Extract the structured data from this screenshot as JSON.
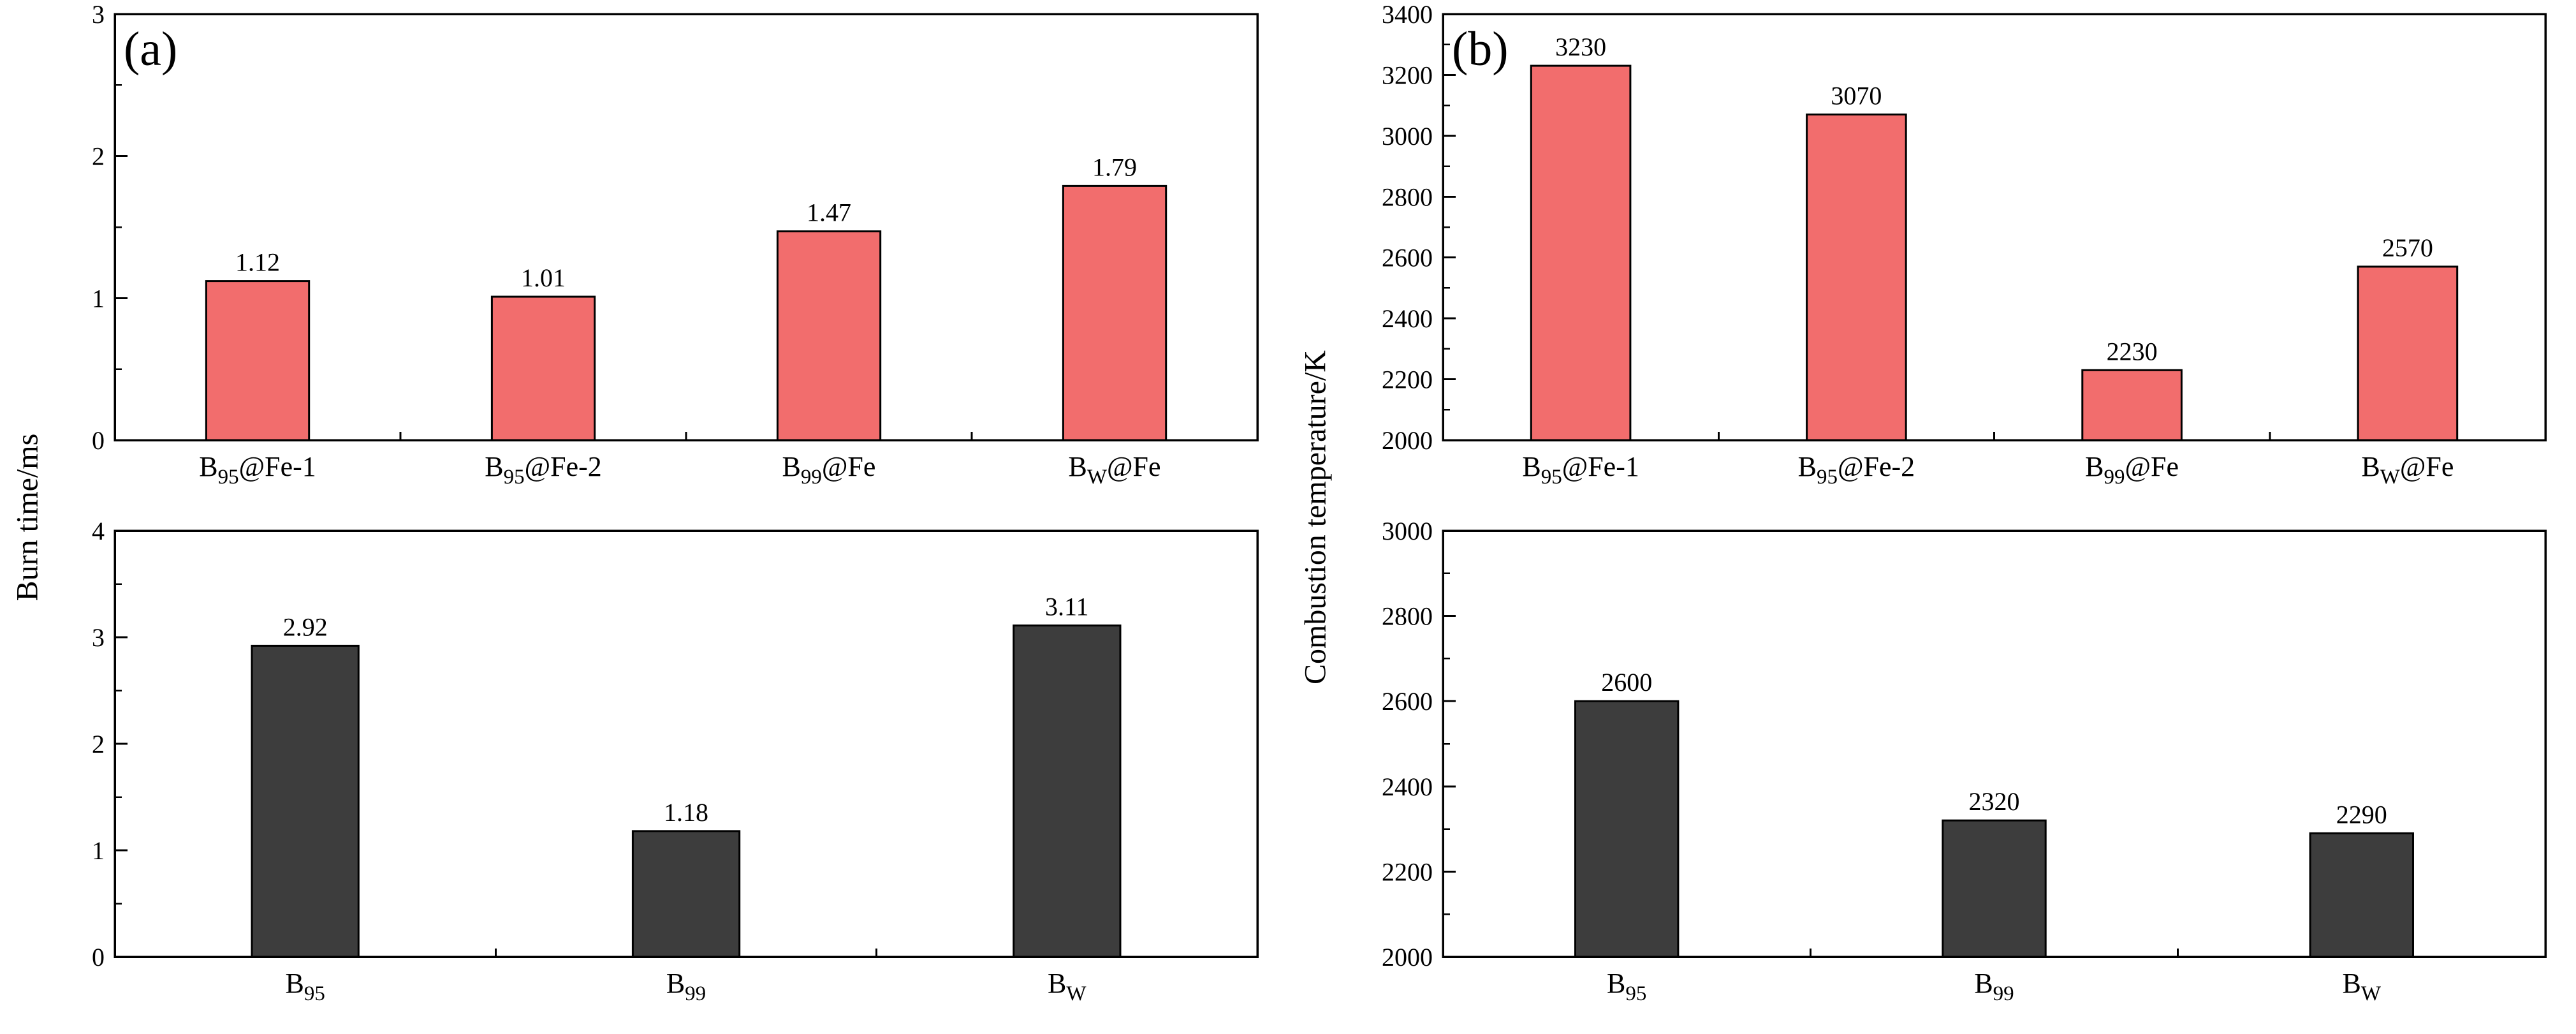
{
  "figure": {
    "background": "#ffffff",
    "axis_color": "#000000",
    "panels": [
      {
        "letter": "(a)",
        "ylabel": "Burn time/ms"
      },
      {
        "letter": "(b)",
        "ylabel": "Combustion temperature/K"
      }
    ]
  },
  "chart_data": [
    {
      "id": "burn-time-fe-coated",
      "panel": "a",
      "position": "top",
      "type": "bar",
      "corner_label": "(a)",
      "categories": [
        "B_{95}@Fe-1",
        "B_{95}@Fe-2",
        "B_{99}@Fe",
        "B_{W}@Fe"
      ],
      "values": [
        1.12,
        1.01,
        1.47,
        1.79
      ],
      "value_labels": [
        "1.12",
        "1.01",
        "1.47",
        "1.79"
      ],
      "ylim": [
        0,
        3
      ],
      "ytick_step": 1,
      "yminor_step": 0.5,
      "ylabel_shared": "Burn time/ms",
      "bar_color": "#F26D6D",
      "bar_frac": 0.36,
      "grid": false,
      "legend": "none"
    },
    {
      "id": "burn-time-raw",
      "panel": "a",
      "position": "bottom",
      "type": "bar",
      "corner_label": "",
      "categories": [
        "B_{95}",
        "B_{99}",
        "B_{W}"
      ],
      "values": [
        2.92,
        1.18,
        3.11
      ],
      "value_labels": [
        "2.92",
        "1.18",
        "3.11"
      ],
      "ylim": [
        0,
        4
      ],
      "ytick_step": 1,
      "yminor_step": 0.5,
      "ylabel_shared": "Burn time/ms",
      "bar_color": "#3D3D3D",
      "bar_frac": 0.28,
      "grid": false,
      "legend": "none"
    },
    {
      "id": "combustion-temperature-fe-coated",
      "panel": "b",
      "position": "top",
      "type": "bar",
      "corner_label": "(b)",
      "categories": [
        "B_{95}@Fe-1",
        "B_{95}@Fe-2",
        "B_{99}@Fe",
        "B_{W}@Fe"
      ],
      "values": [
        3230,
        3070,
        2230,
        2570
      ],
      "value_labels": [
        "3230",
        "3070",
        "2230",
        "2570"
      ],
      "ylim": [
        2000,
        3400
      ],
      "ytick_step": 200,
      "yminor_step": 100,
      "ylabel_shared": "Combustion temperature/K",
      "bar_color": "#F26D6D",
      "bar_frac": 0.36,
      "grid": false,
      "legend": "none"
    },
    {
      "id": "combustion-temperature-raw",
      "panel": "b",
      "position": "bottom",
      "type": "bar",
      "corner_label": "",
      "categories": [
        "B_{95}",
        "B_{99}",
        "B_{W}"
      ],
      "values": [
        2600,
        2320,
        2290
      ],
      "value_labels": [
        "2600",
        "2320",
        "2290"
      ],
      "ylim": [
        2000,
        3000
      ],
      "ytick_step": 200,
      "yminor_step": 100,
      "ylabel_shared": "Combustion temperature/K",
      "bar_color": "#3D3D3D",
      "bar_frac": 0.28,
      "grid": false,
      "legend": "none"
    }
  ]
}
